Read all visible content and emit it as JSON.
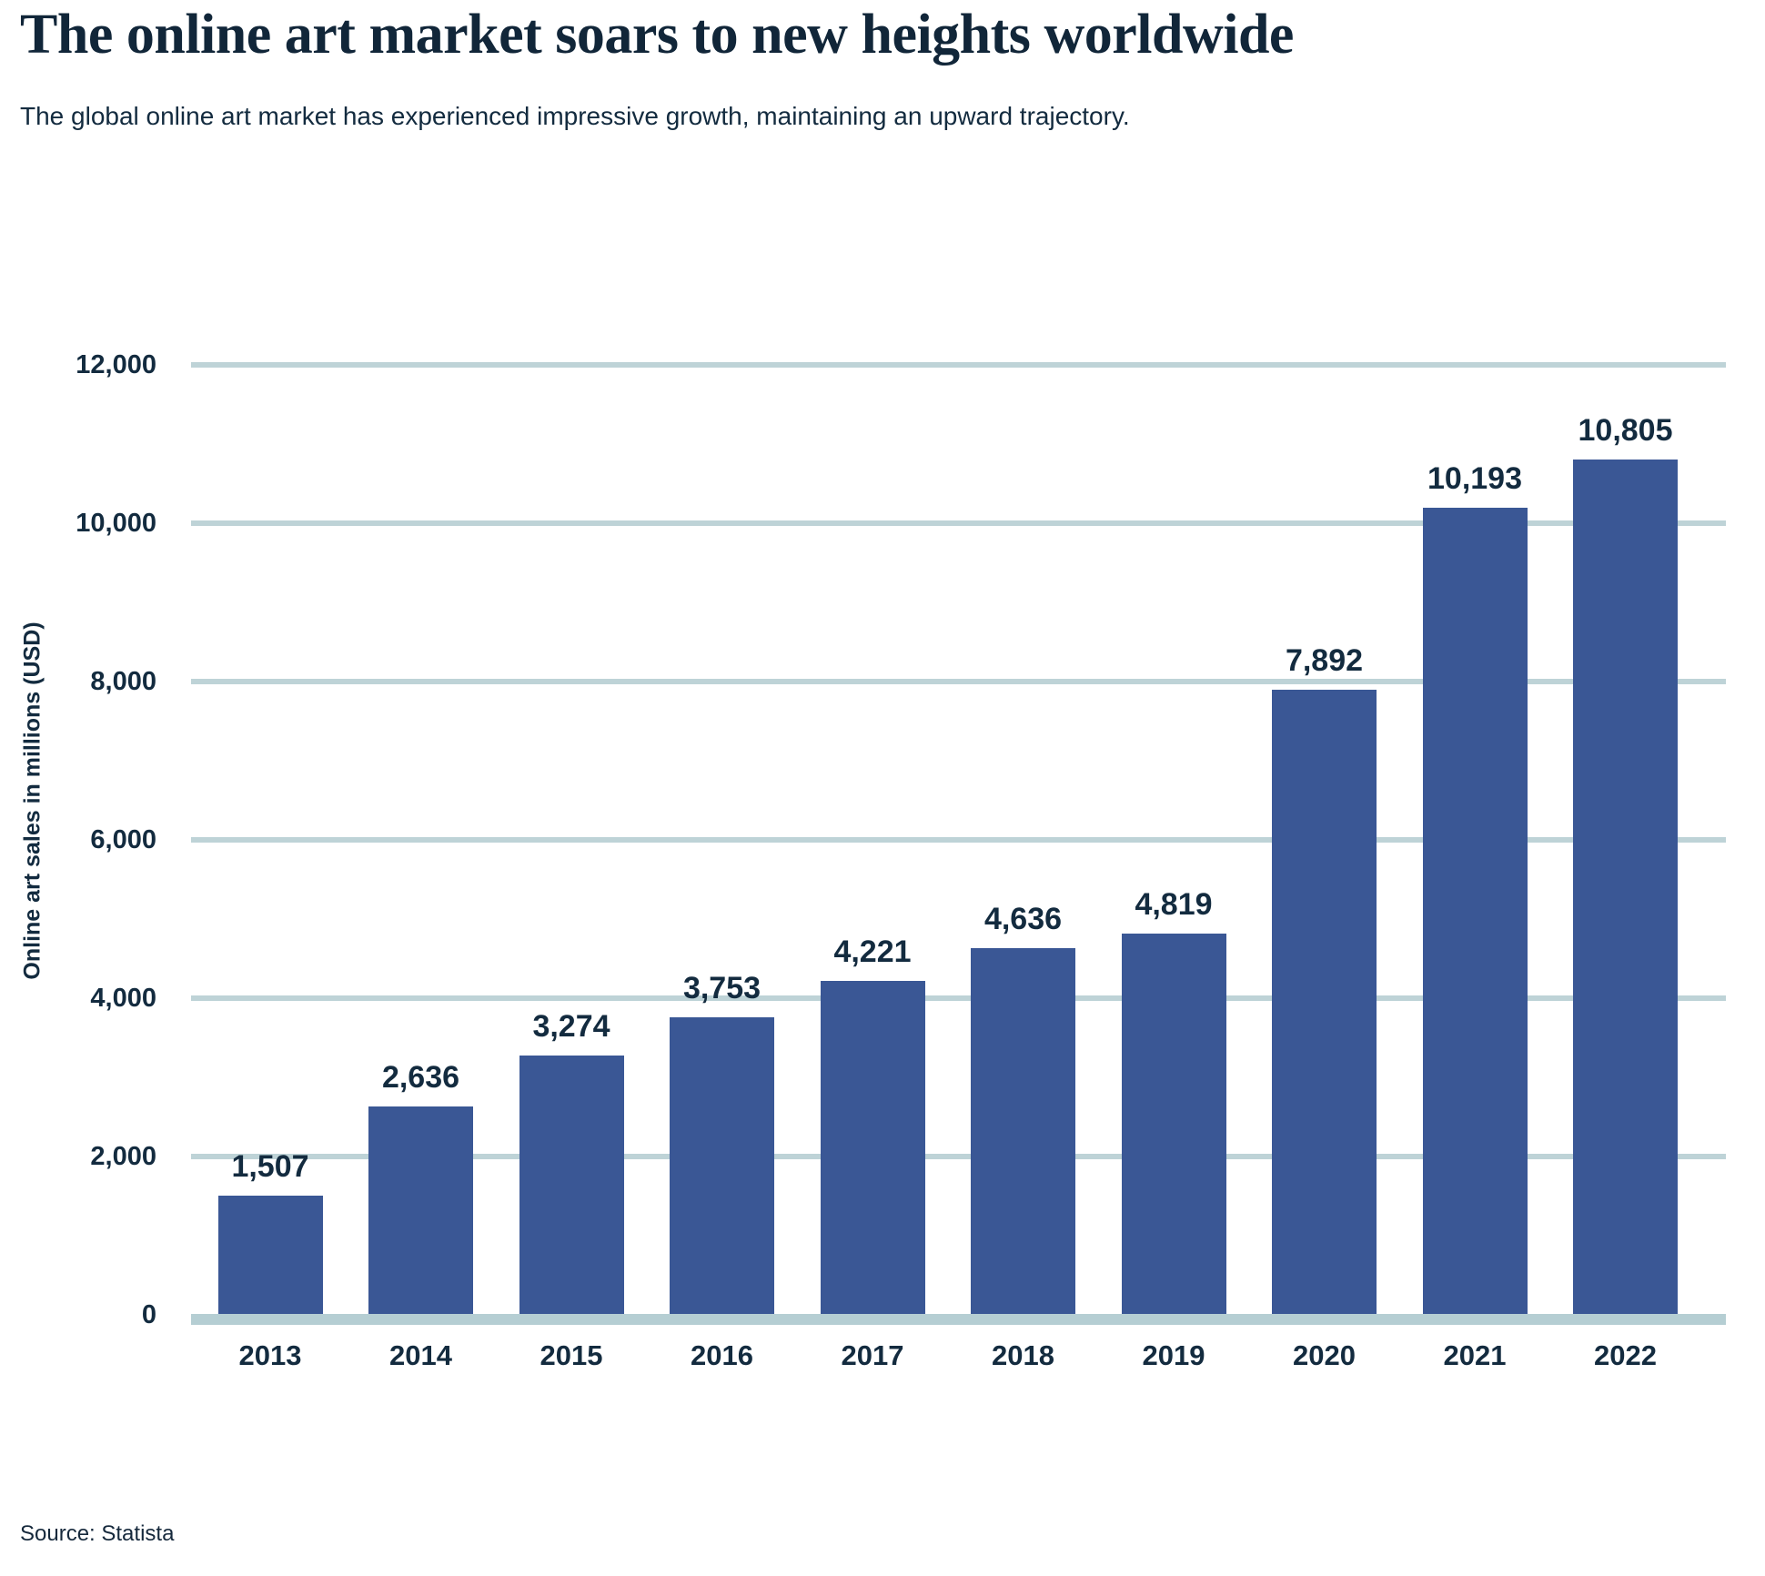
{
  "header": {
    "title": "The online art market soars to new heights worldwide",
    "subtitle": "The global online art market has experienced impressive growth, maintaining an upward trajectory."
  },
  "chart_data": {
    "type": "bar",
    "title": "The online art market soars to new heights worldwide",
    "subtitle": "The global online art market has experienced impressive growth, maintaining an upward trajectory.",
    "categories": [
      "2013",
      "2014",
      "2015",
      "2016",
      "2017",
      "2018",
      "2019",
      "2020",
      "2021",
      "2022"
    ],
    "values": [
      1507,
      2636,
      3274,
      3753,
      4221,
      4636,
      4819,
      7892,
      10193,
      10805
    ],
    "value_labels": [
      "1,507",
      "2,636",
      "3,274",
      "3,753",
      "4,221",
      "4,636",
      "4,819",
      "7,892",
      "10,193",
      "10,805"
    ],
    "xlabel": "",
    "ylabel": "Online art sales in millions (USD)",
    "ylim": [
      0,
      12000
    ],
    "ytick_interval": 2000,
    "yticks": [
      0,
      2000,
      4000,
      6000,
      8000,
      10000,
      12000
    ],
    "ytick_labels": [
      "0",
      "2,000",
      "4,000",
      "6,000",
      "8,000",
      "10,000",
      "12,000"
    ],
    "grid": true,
    "legend_position": "none",
    "colors": {
      "bar": "#3a5795",
      "gridline": "#bed3d7",
      "baseline": "#b5ced3",
      "text": "#132b3f"
    }
  },
  "footer": {
    "source": "Source: Statista"
  }
}
